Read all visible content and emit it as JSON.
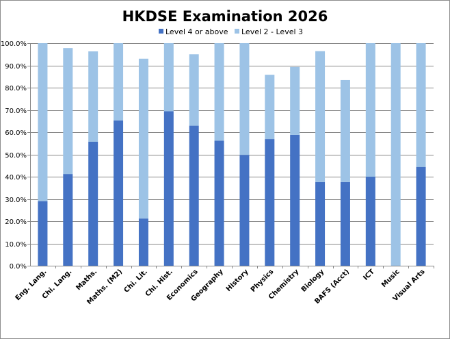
{
  "chart_data": {
    "type": "bar",
    "stacked": true,
    "title": "HKDSE Examination 2026",
    "categories": [
      "Eng. Lang.",
      "Chi. Lang.",
      "Maths.",
      "Maths. (M2)",
      "Chi. Lit.",
      "Chi. Hist.",
      "Economics",
      "Geography",
      "History",
      "Physics",
      "Chemistry",
      "Biology",
      "BAFS (Acct)",
      "ICT",
      "Music",
      "Visual Arts"
    ],
    "series": [
      {
        "name": "Level 4 or above",
        "color": "#4472c4",
        "values": [
          29.0,
          41.2,
          55.7,
          65.3,
          21.2,
          69.4,
          62.9,
          56.2,
          49.8,
          56.9,
          58.8,
          37.6,
          37.6,
          40.0,
          0.0,
          44.4
        ]
      },
      {
        "name": "Level 2 - Level 3",
        "color": "#9dc3e6",
        "values": [
          71.0,
          56.6,
          40.6,
          34.7,
          71.8,
          30.6,
          32.1,
          43.8,
          50.2,
          28.9,
          30.5,
          58.8,
          45.8,
          60.0,
          100.0,
          55.6
        ]
      }
    ],
    "ylim": [
      0,
      100
    ],
    "yticks": [
      "0.0%",
      "10.0%",
      "20.0%",
      "30.0%",
      "40.0%",
      "50.0%",
      "60.0%",
      "70.0%",
      "80.0%",
      "90.0%",
      "100.0%"
    ],
    "grid": true,
    "legend_position": "top"
  }
}
